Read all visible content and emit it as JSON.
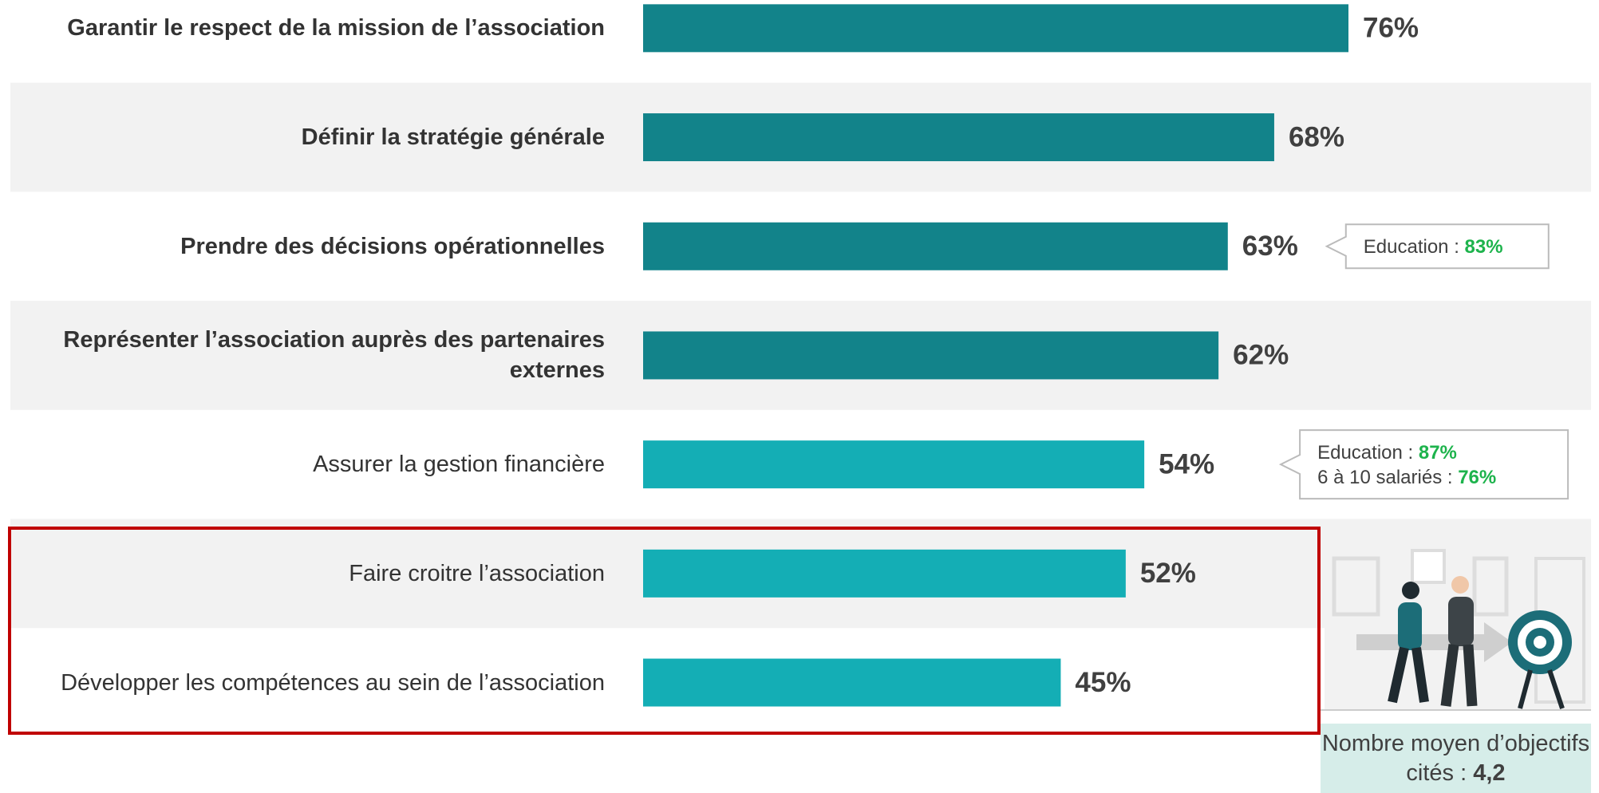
{
  "chart_data": {
    "type": "bar",
    "orientation": "horizontal",
    "categories": [
      "Garantir le respect de la mission de l’association",
      "Définir la stratégie générale",
      "Prendre des décisions opérationnelles",
      "Représenter l’association auprès des partenaires externes",
      "Assurer la gestion financière",
      "Faire croitre l’association",
      "Développer les compétences au sein de l’association"
    ],
    "values": [
      76,
      68,
      63,
      62,
      54,
      52,
      45
    ],
    "value_labels": [
      "76%",
      "68%",
      "63%",
      "62%",
      "54%",
      "52%",
      "45%"
    ],
    "colors": [
      "#12838a",
      "#12838a",
      "#12838a",
      "#12838a",
      "#14aeb5",
      "#14aeb5",
      "#14aeb5"
    ],
    "xlim": [
      0,
      76
    ],
    "annotations": [
      {
        "index": 2,
        "items": [
          {
            "label": "Education :",
            "value": "83%"
          }
        ]
      },
      {
        "index": 4,
        "items": [
          {
            "label": "Education :",
            "value": "87%"
          },
          {
            "label": "6 à 10 salariés :",
            "value": "76%"
          }
        ]
      }
    ],
    "note": {
      "label": "Nombre moyen d’objectifs cités :",
      "value": "4,2"
    }
  }
}
